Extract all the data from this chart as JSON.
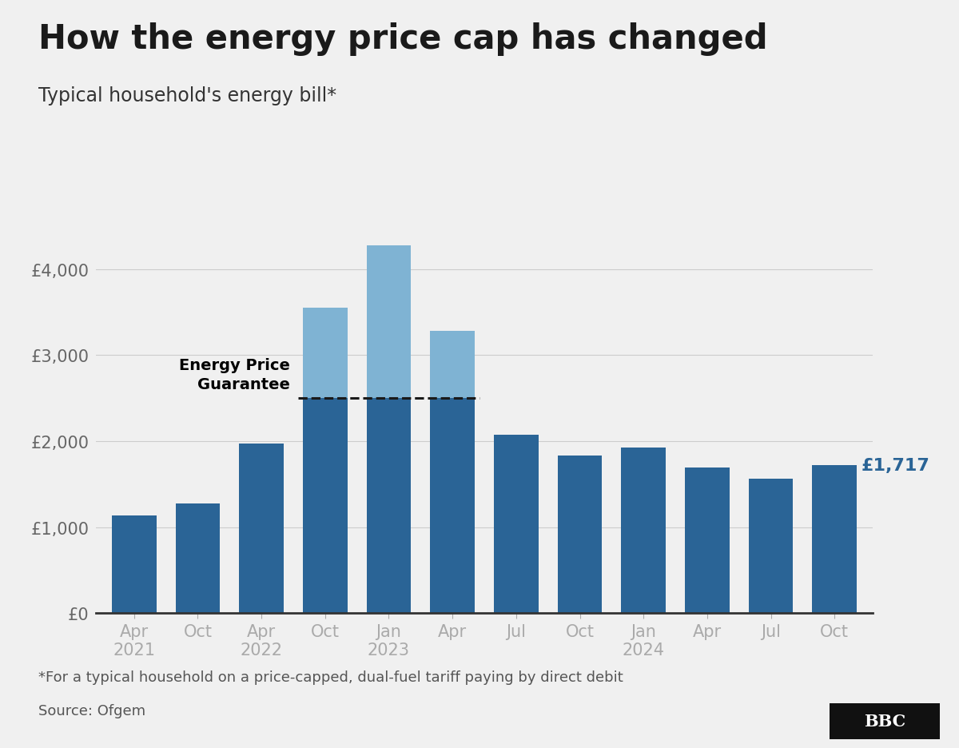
{
  "title": "How the energy price cap has changed",
  "subtitle": "Typical household's energy bill*",
  "footnote": "*For a typical household on a price-capped, dual-fuel tariff paying by direct debit",
  "source": "Source: Ofgem",
  "categories": [
    "Apr\n2021",
    "Oct",
    "Apr\n2022",
    "Oct",
    "Jan\n2023",
    "Apr",
    "Jul",
    "Oct",
    "Jan\n2024",
    "Apr",
    "Jul",
    "Oct"
  ],
  "values": [
    1138,
    1277,
    1971,
    3549,
    4279,
    3280,
    2074,
    1834,
    1928,
    1690,
    1568,
    1717
  ],
  "epg_level": 2500,
  "epg_bar_indices": [
    3,
    4,
    5
  ],
  "bar_color_dark": "#2a6496",
  "bar_color_light": "#7fb3d3",
  "epg_line_color": "#1a1a1a",
  "background_color": "#f0f0f0",
  "ylim": [
    0,
    4700
  ],
  "yticks": [
    0,
    1000,
    2000,
    3000,
    4000
  ],
  "ylabel_prefix": "£",
  "last_bar_label": "£1,717",
  "last_bar_label_color": "#2a6496",
  "epg_annotation": "Energy Price\nGuarantee",
  "title_fontsize": 30,
  "subtitle_fontsize": 17,
  "tick_fontsize": 15,
  "footnote_fontsize": 13,
  "source_fontsize": 13,
  "annotation_fontsize": 14
}
